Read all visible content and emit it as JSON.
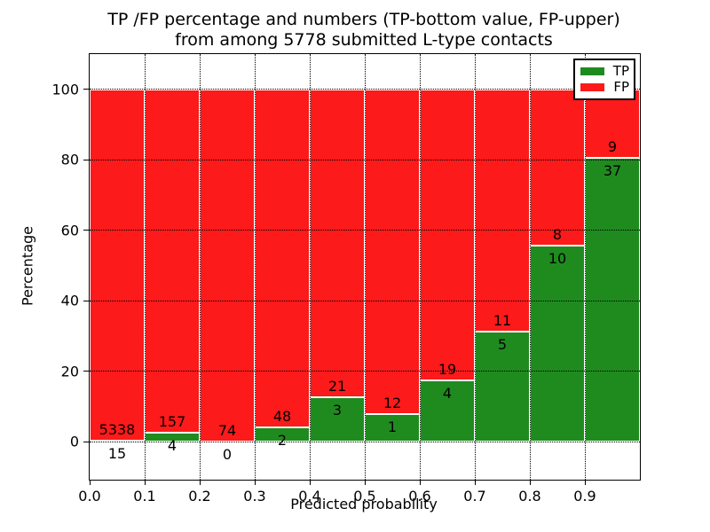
{
  "chart_data": {
    "type": "stacked_bar_percentage",
    "title_line1": "TP /FP percentage and numbers (TP-bottom value, FP-upper)",
    "title_line2": "from among 5778 submitted L-type contacts",
    "total_contacts": 5778,
    "xlabel": "Predicted probability",
    "ylabel": "Percentage",
    "xlim": [
      0.0,
      1.0
    ],
    "ylim": [
      -11,
      110
    ],
    "bin_width": 0.1,
    "grid": "dotted, both axes",
    "legend_position": "upper right",
    "x_tick_labels": [
      "0.0",
      "0.1",
      "0.2",
      "0.3",
      "0.4",
      "0.5",
      "0.6",
      "0.7",
      "0.8",
      "0.9"
    ],
    "y_ticks": [
      0,
      20,
      40,
      60,
      80,
      100
    ],
    "y_tick_labels": [
      "0",
      "20",
      "40",
      "60",
      "80",
      "100"
    ],
    "bins": [
      {
        "x_start": 0.0,
        "tp": 15,
        "fp": 5338
      },
      {
        "x_start": 0.1,
        "tp": 4,
        "fp": 157
      },
      {
        "x_start": 0.2,
        "tp": 0,
        "fp": 74
      },
      {
        "x_start": 0.3,
        "tp": 2,
        "fp": 48
      },
      {
        "x_start": 0.4,
        "tp": 3,
        "fp": 21
      },
      {
        "x_start": 0.5,
        "tp": 1,
        "fp": 12
      },
      {
        "x_start": 0.6,
        "tp": 4,
        "fp": 19
      },
      {
        "x_start": 0.7,
        "tp": 5,
        "fp": 11
      },
      {
        "x_start": 0.8,
        "tp": 10,
        "fp": 8
      },
      {
        "x_start": 0.9,
        "tp": 37,
        "fp": 9
      }
    ],
    "tp_percent": [
      0.28,
      2.48,
      0.0,
      4.0,
      12.5,
      7.69,
      17.39,
      31.25,
      55.56,
      80.43
    ],
    "legend": [
      {
        "label": "TP",
        "color": "#1f8b1f"
      },
      {
        "label": "FP",
        "color": "#fc1a1a"
      }
    ]
  }
}
